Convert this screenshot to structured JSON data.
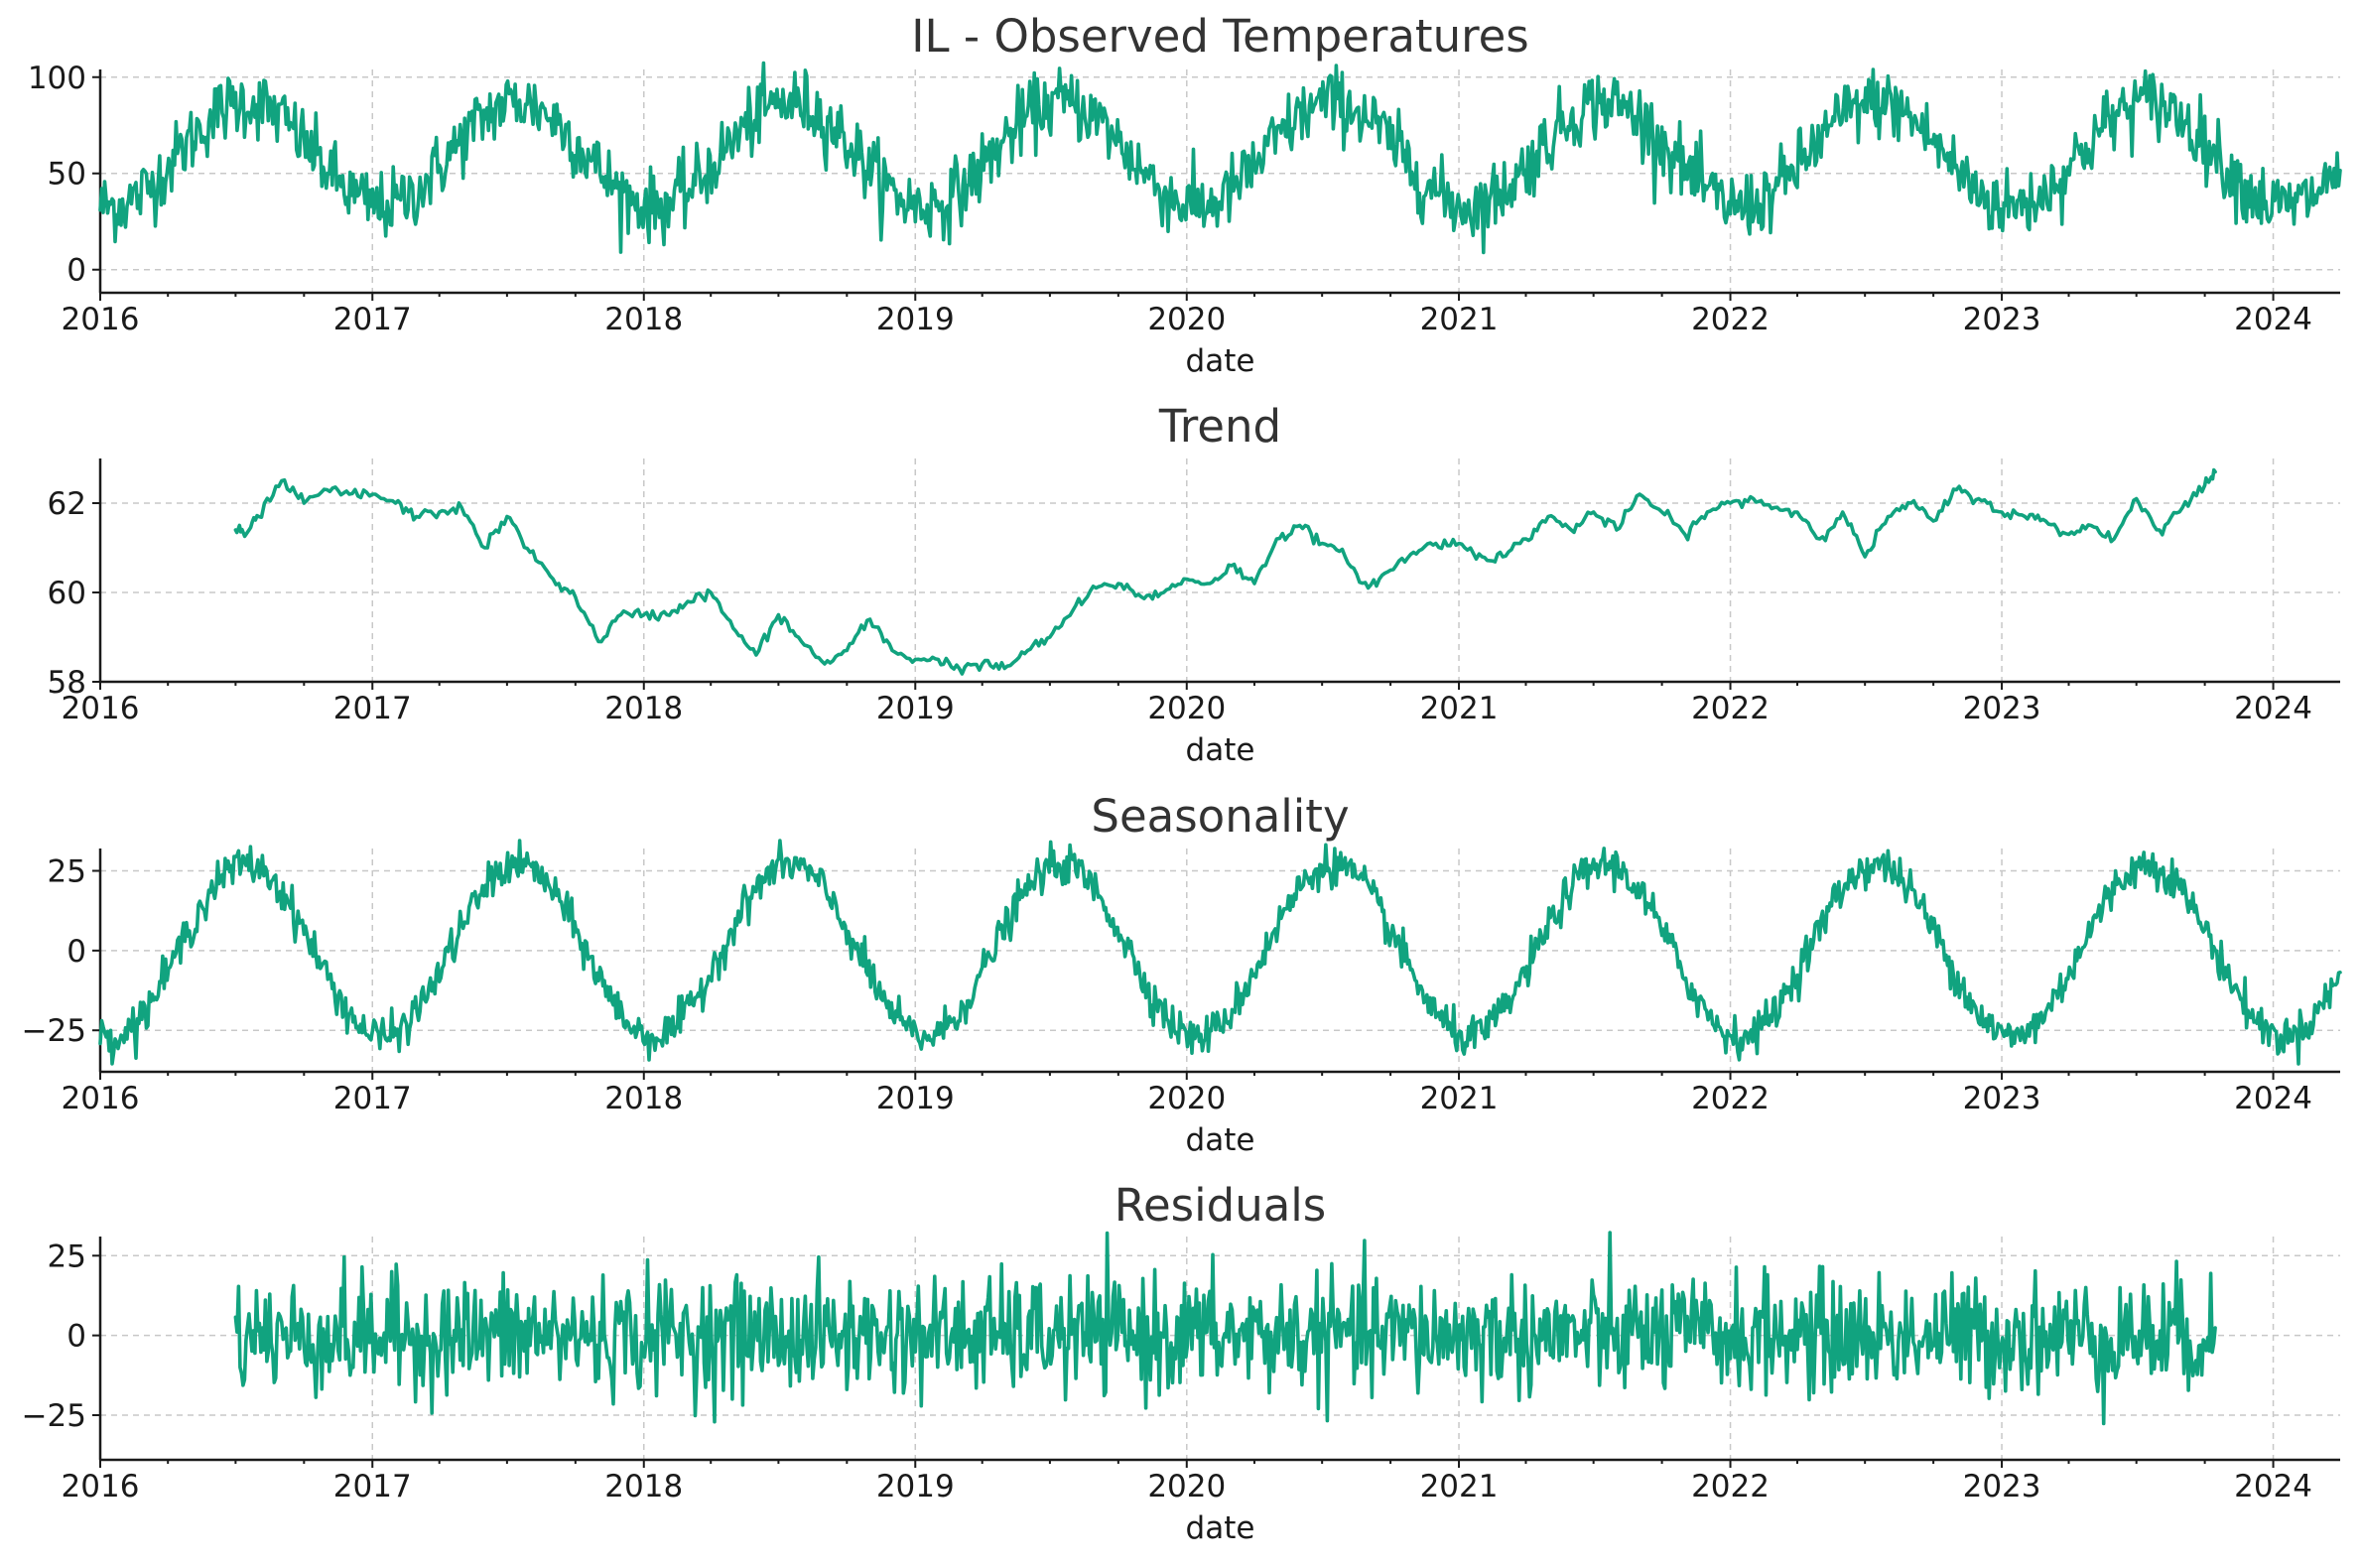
{
  "chart_data": [
    {
      "type": "line",
      "title": "IL - Observed Temperatures",
      "xlabel": "date",
      "ylabel": "",
      "x_range": [
        "2016-01-01",
        "2024-03-31"
      ],
      "ylim": [
        -12,
        104
      ],
      "yticks": [
        0,
        50,
        100
      ],
      "xticks": [
        "2016",
        "2017",
        "2018",
        "2019",
        "2020",
        "2021",
        "2022",
        "2023",
        "2024"
      ],
      "grid": true,
      "color": "#11a37f",
      "series": [
        {
          "name": "",
          "description": "Daily temperature, seasonal cycle ~15 to ~95 with noise",
          "annual_mean": 60,
          "amplitude": 27,
          "noise": 9,
          "start": "2016-01-01",
          "end": "2024-03-31"
        }
      ]
    },
    {
      "type": "line",
      "title": "Trend",
      "xlabel": "date",
      "ylabel": "",
      "x_range": [
        "2016-01-01",
        "2024-03-31"
      ],
      "ylim": [
        58,
        63
      ],
      "yticks": [
        58,
        60,
        62
      ],
      "xticks": [
        "2016",
        "2017",
        "2018",
        "2019",
        "2020",
        "2021",
        "2022",
        "2023",
        "2024"
      ],
      "grid": true,
      "color": "#11a37f",
      "series": [
        {
          "name": "",
          "points": [
            [
              "2016-07-01",
              61.4
            ],
            [
              "2016-07-15",
              61.3
            ],
            [
              "2016-08-01",
              61.7
            ],
            [
              "2016-09-01",
              62.5
            ],
            [
              "2016-10-01",
              62.0
            ],
            [
              "2016-11-01",
              62.3
            ],
            [
              "2016-12-01",
              62.2
            ],
            [
              "2017-01-01",
              62.2
            ],
            [
              "2017-02-01",
              62.0
            ],
            [
              "2017-03-01",
              61.7
            ],
            [
              "2017-04-01",
              61.8
            ],
            [
              "2017-05-01",
              61.9
            ],
            [
              "2017-06-01",
              61.0
            ],
            [
              "2017-07-01",
              61.7
            ],
            [
              "2017-08-01",
              60.9
            ],
            [
              "2017-09-01",
              60.3
            ],
            [
              "2017-10-01",
              59.9
            ],
            [
              "2017-11-01",
              58.9
            ],
            [
              "2017-12-01",
              59.5
            ],
            [
              "2018-01-01",
              59.5
            ],
            [
              "2018-02-01",
              59.5
            ],
            [
              "2018-03-01",
              59.8
            ],
            [
              "2018-04-01",
              60.0
            ],
            [
              "2018-05-01",
              59.2
            ],
            [
              "2018-06-01",
              58.6
            ],
            [
              "2018-07-01",
              59.5
            ],
            [
              "2018-08-01",
              58.9
            ],
            [
              "2018-09-01",
              58.4
            ],
            [
              "2018-10-01",
              58.7
            ],
            [
              "2018-11-01",
              59.4
            ],
            [
              "2018-12-01",
              58.7
            ],
            [
              "2019-01-01",
              58.5
            ],
            [
              "2019-02-01",
              58.5
            ],
            [
              "2019-03-01",
              58.3
            ],
            [
              "2019-04-01",
              58.4
            ],
            [
              "2019-05-01",
              58.3
            ],
            [
              "2019-06-01",
              58.7
            ],
            [
              "2019-07-01",
              59.0
            ],
            [
              "2019-08-01",
              59.6
            ],
            [
              "2019-09-01",
              60.1
            ],
            [
              "2019-10-01",
              60.2
            ],
            [
              "2019-11-01",
              59.9
            ],
            [
              "2019-12-01",
              60.0
            ],
            [
              "2020-01-01",
              60.3
            ],
            [
              "2020-02-01",
              60.2
            ],
            [
              "2020-03-01",
              60.6
            ],
            [
              "2020-04-01",
              60.2
            ],
            [
              "2020-05-01",
              61.2
            ],
            [
              "2020-06-01",
              61.5
            ],
            [
              "2020-07-01",
              61.1
            ],
            [
              "2020-08-01",
              60.8
            ],
            [
              "2020-09-01",
              60.1
            ],
            [
              "2020-10-01",
              60.5
            ],
            [
              "2020-11-01",
              60.9
            ],
            [
              "2020-12-01",
              61.1
            ],
            [
              "2021-01-01",
              61.1
            ],
            [
              "2021-02-01",
              60.8
            ],
            [
              "2021-03-01",
              60.8
            ],
            [
              "2021-04-01",
              61.2
            ],
            [
              "2021-05-01",
              61.7
            ],
            [
              "2021-06-01",
              61.4
            ],
            [
              "2021-07-01",
              61.8
            ],
            [
              "2021-08-01",
              61.4
            ],
            [
              "2021-09-01",
              62.2
            ],
            [
              "2021-10-01",
              61.8
            ],
            [
              "2021-11-01",
              61.3
            ],
            [
              "2021-12-01",
              61.8
            ],
            [
              "2022-01-01",
              62.0
            ],
            [
              "2022-02-01",
              62.1
            ],
            [
              "2022-03-01",
              61.9
            ],
            [
              "2022-04-01",
              61.8
            ],
            [
              "2022-05-01",
              61.2
            ],
            [
              "2022-06-01",
              61.8
            ],
            [
              "2022-07-01",
              60.8
            ],
            [
              "2022-08-01",
              61.7
            ],
            [
              "2022-09-01",
              62.0
            ],
            [
              "2022-10-01",
              61.6
            ],
            [
              "2022-11-01",
              62.3
            ],
            [
              "2022-12-01",
              62.1
            ],
            [
              "2023-01-01",
              61.8
            ],
            [
              "2023-02-01",
              61.7
            ],
            [
              "2023-03-01",
              61.6
            ],
            [
              "2023-04-01",
              61.3
            ],
            [
              "2023-05-01",
              61.5
            ],
            [
              "2023-06-01",
              61.2
            ],
            [
              "2023-07-01",
              62.1
            ],
            [
              "2023-08-01",
              61.4
            ],
            [
              "2023-09-01",
              61.9
            ],
            [
              "2023-10-01",
              62.4
            ],
            [
              "2023-10-15",
              62.7
            ]
          ]
        }
      ]
    },
    {
      "type": "line",
      "title": "Seasonality",
      "xlabel": "date",
      "ylabel": "",
      "x_range": [
        "2016-01-01",
        "2024-03-31"
      ],
      "ylim": [
        -38,
        32
      ],
      "yticks": [
        -25,
        0,
        25
      ],
      "yticklabels": [
        "−25",
        "0",
        "25"
      ],
      "xticks": [
        "2016",
        "2017",
        "2018",
        "2019",
        "2020",
        "2021",
        "2022",
        "2023",
        "2024"
      ],
      "grid": true,
      "color": "#11a37f",
      "series": [
        {
          "name": "",
          "description": "Repeating annual pattern between about -30 and +27",
          "amplitude": 27,
          "noise": 3,
          "start": "2016-01-01",
          "end": "2024-03-31"
        }
      ]
    },
    {
      "type": "line",
      "title": "Residuals",
      "xlabel": "date",
      "ylabel": "",
      "x_range": [
        "2016-01-01",
        "2024-03-31"
      ],
      "ylim": [
        -39,
        31
      ],
      "yticks": [
        -25,
        0,
        25
      ],
      "yticklabels": [
        "−25",
        "0",
        "25"
      ],
      "xticks": [
        "2016",
        "2017",
        "2018",
        "2019",
        "2020",
        "2021",
        "2022",
        "2023",
        "2024"
      ],
      "grid": true,
      "color": "#11a37f",
      "series": [
        {
          "name": "",
          "description": "Noise around zero, mostly within ±25",
          "noise": 9,
          "start": "2016-07-01",
          "end": "2023-10-15"
        }
      ]
    }
  ]
}
